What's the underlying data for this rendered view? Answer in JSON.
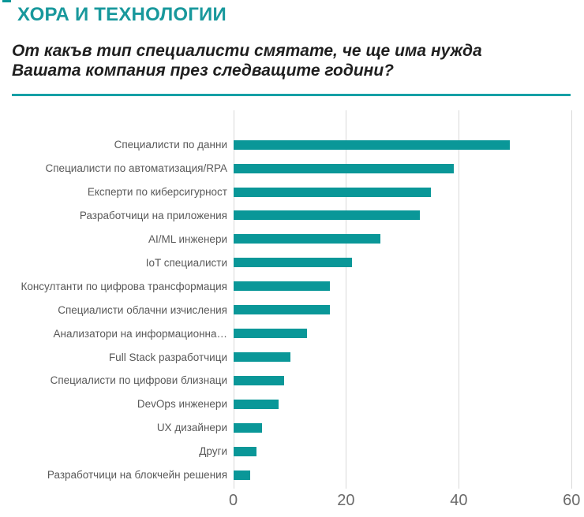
{
  "header": {
    "title": "ХОРА И ТЕХНОЛОГИИ",
    "subtitle_line1": "От какъв тип специалисти смятате, че ще има нужда",
    "subtitle_line2": "Вашата компания през следващите години?"
  },
  "colors": {
    "accent_teal": "#0a9798",
    "title_teal": "#18989c",
    "separator_teal": "#16a0a6",
    "grid_gray": "#d9d9d9",
    "label_gray": "#595959",
    "tick_gray": "#6b6b6b"
  },
  "chart_data": {
    "type": "bar",
    "orientation": "horizontal",
    "title": "",
    "xlabel": "",
    "ylabel": "",
    "categories": [
      "Специалисти по данни",
      "Специалисти по автоматизация/RPA",
      "Експерти по киберсигурност",
      "Разработчици на приложения",
      "AI/ML инженери",
      "IoT специалисти",
      "Консултанти по цифрова трансформация",
      "Специалисти облачни изчисления",
      "Анализатори на информационна…",
      "Full Stack разработчици",
      "Специалисти по цифрови близнаци",
      "DevOps инженери",
      "UX дизайнери",
      "Други",
      "Разработчици на блокчейн решения"
    ],
    "values": [
      49,
      39,
      35,
      33,
      26,
      21,
      17,
      17,
      13,
      10,
      9,
      8,
      5,
      4,
      3
    ],
    "xlim": [
      0,
      60
    ],
    "x_ticks": [
      0,
      20,
      40,
      60
    ],
    "grid": "vertical-gridlines-on",
    "legend": "none",
    "bar_color": "#0a9798"
  }
}
